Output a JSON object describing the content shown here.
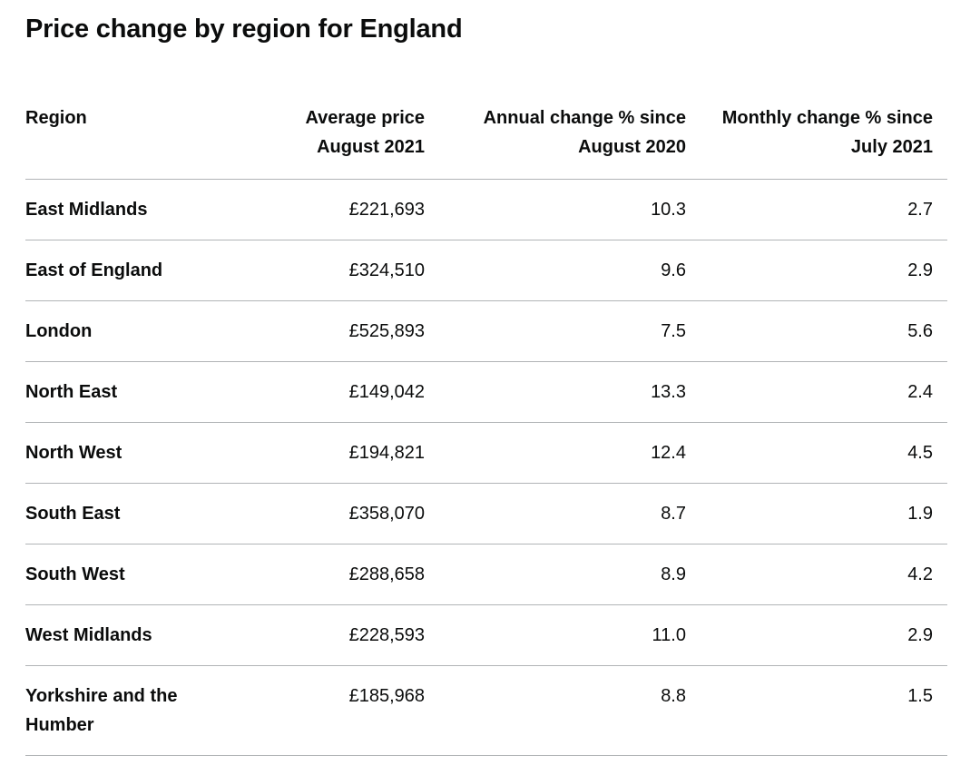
{
  "title": "Price change by region for England",
  "table": {
    "headers": {
      "region": "Region",
      "price_line1": "Average price",
      "price_line2": "August 2021",
      "annual_line1": "Annual change % since",
      "annual_line2": "August 2020",
      "monthly_line1": "Monthly change % since",
      "monthly_line2": "July 2021"
    },
    "rows": [
      {
        "region": "East Midlands",
        "price": "£221,693",
        "annual": "10.3",
        "monthly": "2.7"
      },
      {
        "region": "East of England",
        "price": "£324,510",
        "annual": "9.6",
        "monthly": "2.9"
      },
      {
        "region": "London",
        "price": "£525,893",
        "annual": "7.5",
        "monthly": "5.6"
      },
      {
        "region": "North East",
        "price": "£149,042",
        "annual": "13.3",
        "monthly": "2.4"
      },
      {
        "region": "North West",
        "price": "£194,821",
        "annual": "12.4",
        "monthly": "4.5"
      },
      {
        "region": "South East",
        "price": "£358,070",
        "annual": "8.7",
        "monthly": "1.9"
      },
      {
        "region": "South West",
        "price": "£288,658",
        "annual": "8.9",
        "monthly": "4.2"
      },
      {
        "region": "West Midlands",
        "price": "£228,593",
        "annual": "11.0",
        "monthly": "2.9"
      },
      {
        "region": "Yorkshire and the Humber",
        "price": "£185,968",
        "annual": "8.8",
        "monthly": "1.5"
      }
    ]
  }
}
